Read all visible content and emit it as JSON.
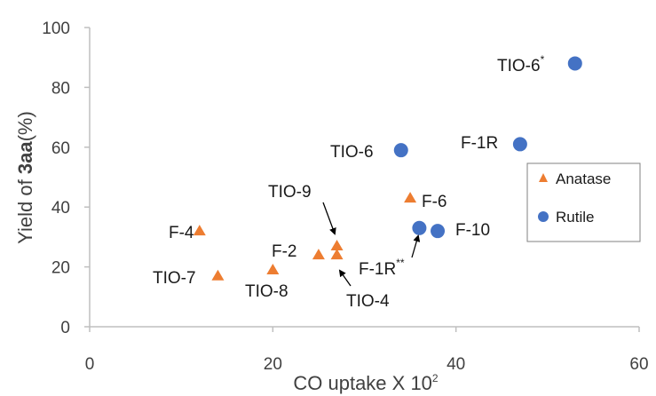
{
  "chart_data": {
    "type": "scatter",
    "title": "",
    "xlabel": "CO uptake X 10",
    "xlabel_superscript": "2",
    "ylabel_prefix": "Yield of ",
    "ylabel_bold": "3aa",
    "ylabel_suffix": "(%)",
    "xlim": [
      0,
      60
    ],
    "ylim": [
      0,
      100
    ],
    "xticks": [
      "0",
      "20",
      "40",
      "60"
    ],
    "yticks": [
      "0",
      "20",
      "40",
      "60",
      "80",
      "100"
    ],
    "grid": false,
    "legend_position": "right",
    "series": [
      {
        "name": "Anatase",
        "marker": "triangle",
        "color": "#ED7D31",
        "points": [
          {
            "x": 12,
            "y": 32
          },
          {
            "x": 14,
            "y": 17
          },
          {
            "x": 20,
            "y": 19
          },
          {
            "x": 25,
            "y": 24
          },
          {
            "x": 27,
            "y": 27
          },
          {
            "x": 27,
            "y": 24
          },
          {
            "x": 35,
            "y": 43
          }
        ]
      },
      {
        "name": "Rutile",
        "marker": "circle",
        "color": "#4472C4",
        "points": [
          {
            "x": 34,
            "y": 59
          },
          {
            "x": 36,
            "y": 33
          },
          {
            "x": 38,
            "y": 32
          },
          {
            "x": 47,
            "y": 61
          },
          {
            "x": 53,
            "y": 88
          }
        ]
      }
    ],
    "annotations": [
      {
        "text": "F-4",
        "sup": ""
      },
      {
        "text": "TIO-7",
        "sup": ""
      },
      {
        "text": "TIO-8",
        "sup": ""
      },
      {
        "text": "F-2",
        "sup": ""
      },
      {
        "text": "TIO-9",
        "sup": ""
      },
      {
        "text": "TIO-4",
        "sup": ""
      },
      {
        "text": "F-6",
        "sup": ""
      },
      {
        "text": "F-1R",
        "sup": "**"
      },
      {
        "text": "F-10",
        "sup": ""
      },
      {
        "text": "TIO-6",
        "sup": ""
      },
      {
        "text": "F-1R",
        "sup": ""
      },
      {
        "text": "TIO-6",
        "sup": "*"
      }
    ],
    "colors": {
      "axis": "#bfbfbf",
      "text": "#404040",
      "anatase": "#ED7D31",
      "rutile": "#4472C4"
    }
  }
}
